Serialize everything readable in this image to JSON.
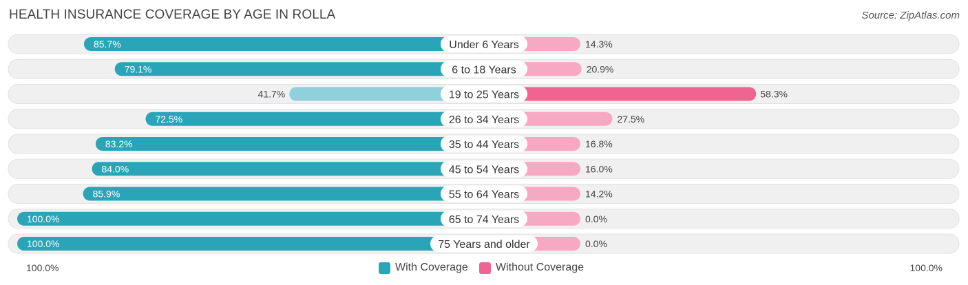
{
  "header": {
    "title": "HEALTH INSURANCE COVERAGE BY AGE IN ROLLA",
    "source": "Source: ZipAtlas.com"
  },
  "colors": {
    "with_strong": "#2aa5b8",
    "with_light": "#8fd0dc",
    "without_strong": "#f06492",
    "without_light": "#f7a8c3",
    "track": "#f0f0f0"
  },
  "chart_data": {
    "type": "bar",
    "title": "HEALTH INSURANCE COVERAGE BY AGE IN ROLLA",
    "orientation": "horizontal-diverging",
    "categories": [
      "Under 6 Years",
      "6 to 18 Years",
      "19 to 25 Years",
      "26 to 34 Years",
      "35 to 44 Years",
      "45 to 54 Years",
      "55 to 64 Years",
      "65 to 74 Years",
      "75 Years and older"
    ],
    "series": [
      {
        "name": "With Coverage",
        "values": [
          85.7,
          79.1,
          41.7,
          72.5,
          83.2,
          84.0,
          85.9,
          100.0,
          100.0
        ],
        "labels": [
          "85.7%",
          "79.1%",
          "41.7%",
          "72.5%",
          "83.2%",
          "84.0%",
          "85.9%",
          "100.0%",
          "100.0%"
        ]
      },
      {
        "name": "Without Coverage",
        "values": [
          14.3,
          20.9,
          58.3,
          27.5,
          16.8,
          16.0,
          14.2,
          0.0,
          0.0
        ],
        "labels": [
          "14.3%",
          "20.9%",
          "58.3%",
          "27.5%",
          "16.8%",
          "16.0%",
          "14.2%",
          "0.0%",
          "0.0%"
        ]
      }
    ],
    "xlim": [
      0,
      100
    ],
    "axis_left_label": "100.0%",
    "axis_right_label": "100.0%",
    "legend": [
      "With Coverage",
      "Without Coverage"
    ],
    "legend_position": "bottom-center"
  }
}
